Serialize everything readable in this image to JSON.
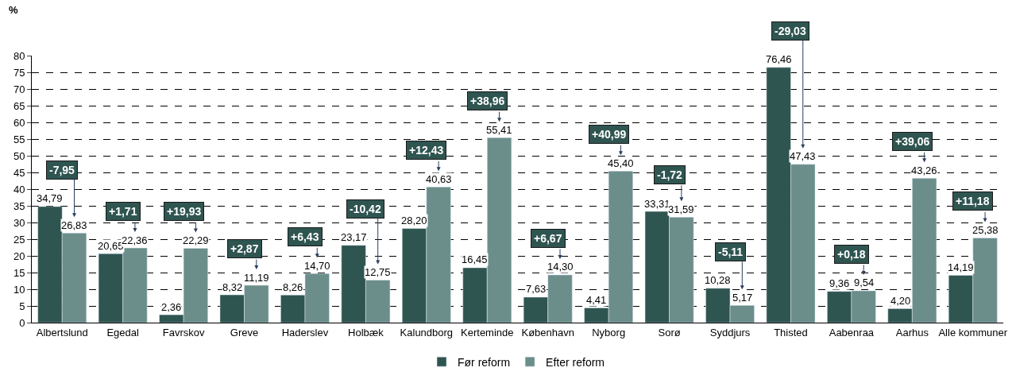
{
  "chart_data": {
    "type": "bar",
    "ylabel": "%",
    "categories": [
      "Albertslund",
      "Egedal",
      "Favrskov",
      "Greve",
      "Haderslev",
      "Holbæk",
      "Kalundborg",
      "Kerteminde",
      "København",
      "Nyborg",
      "Sorø",
      "Syddjurs",
      "Thisted",
      "Aabenraa",
      "Aarhus",
      "Alle kommuner"
    ],
    "series": [
      {
        "name": "Før reform",
        "color": "#2f5551",
        "values": [
          34.79,
          20.65,
          2.36,
          8.32,
          8.26,
          23.17,
          28.2,
          16.45,
          7.63,
          4.41,
          33.31,
          10.28,
          76.46,
          9.36,
          4.2,
          14.19
        ],
        "value_labels": [
          "34,79",
          "20,65",
          "2,36",
          "8,32",
          "8,26",
          "23,17",
          "28,20",
          "16,45",
          "7,63",
          "4,41",
          "33,31",
          "10,28",
          "76,46",
          "9,36",
          "4,20",
          "14,19"
        ]
      },
      {
        "name": "Efter reform",
        "color": "#6b8e8b",
        "values": [
          26.83,
          22.36,
          22.29,
          11.19,
          14.7,
          12.75,
          40.63,
          55.41,
          14.3,
          45.4,
          31.59,
          5.17,
          47.43,
          9.54,
          43.26,
          25.38
        ],
        "value_labels": [
          "26,83",
          "22,36",
          "22,29",
          "11,19",
          "14,70",
          "12,75",
          "40,63",
          "55,41",
          "14,30",
          "45,40",
          "31,59",
          "5,17",
          "47,43",
          "9,54",
          "43,26",
          "25,38"
        ]
      }
    ],
    "annotations": [
      "-7,95",
      "+1,71",
      "+19,93",
      "+2,87",
      "+6,43",
      "-10,42",
      "+12,43",
      "+38,96",
      "+6,67",
      "+40,99",
      "-1,72",
      "-5,11",
      "-29,03",
      "+0,18",
      "+39,06",
      "+11,18"
    ],
    "ylim": [
      0,
      80
    ],
    "yticks": [
      0,
      5,
      10,
      15,
      20,
      25,
      30,
      35,
      40,
      45,
      50,
      55,
      60,
      65,
      70,
      75,
      80
    ],
    "grid": "y",
    "legend": "bottom"
  }
}
